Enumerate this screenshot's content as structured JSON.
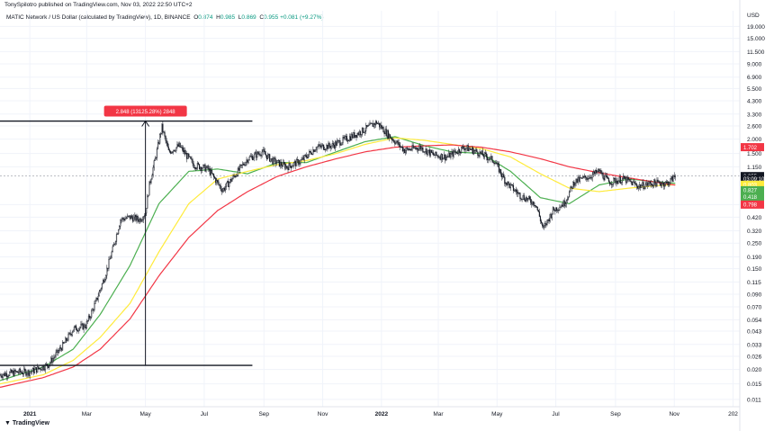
{
  "header": {
    "attribution": "TonySpilotro published on TradingView.com, Nov 03, 2022 22:50 UTC+2",
    "symbol_line": "MATIC Network / US Dollar (calculated by TradingView), 1D, BINANCE",
    "o_key": "O",
    "o_val": "0.874",
    "h_key": "H",
    "h_val": "0.985",
    "l_key": "L",
    "l_val": "0.869",
    "c_key": "C",
    "c_val": "0.955 +0.081 (+9.27%)"
  },
  "footer": {
    "brand": "TradingView"
  },
  "chart_data": {
    "type": "line",
    "currency": "USD",
    "scale": "log",
    "x_tick_labels": [
      "2021",
      "Mar",
      "May",
      "Jul",
      "Sep",
      "Nov",
      "2022",
      "Mar",
      "May",
      "Jul",
      "Sep",
      "Nov",
      "202"
    ],
    "y_tick_labels": [
      "19.000",
      "15.000",
      "11.500",
      "9.000",
      "6.900",
      "5.500",
      "4.300",
      "3.300",
      "2.600",
      "2.000",
      "1.500",
      "1.150",
      "0.540",
      "0.420",
      "0.320",
      "0.250",
      "0.190",
      "0.150",
      "0.115",
      "0.090",
      "0.070",
      "0.054",
      "0.043",
      "0.033",
      "0.026",
      "0.020",
      "0.015",
      "0.011"
    ],
    "y_tick_values": [
      19,
      15,
      11.5,
      9,
      6.9,
      5.5,
      4.3,
      3.3,
      2.6,
      2.0,
      1.5,
      1.15,
      0.54,
      0.42,
      0.32,
      0.25,
      0.19,
      0.15,
      0.115,
      0.09,
      0.07,
      0.054,
      0.043,
      0.033,
      0.026,
      0.02,
      0.015,
      0.011
    ],
    "x_tick_dates": [
      "2021-01-01",
      "2021-03-01",
      "2021-05-01",
      "2021-07-01",
      "2021-09-01",
      "2021-11-01",
      "2022-01-01",
      "2022-03-01",
      "2022-05-01",
      "2022-07-01",
      "2022-09-01",
      "2022-11-01",
      "2023-01-01"
    ],
    "price_path": [
      [
        "2020-12-01",
        0.018
      ],
      [
        "2020-12-20",
        0.019
      ],
      [
        "2021-01-01",
        0.019
      ],
      [
        "2021-01-20",
        0.022
      ],
      [
        "2021-02-05",
        0.033
      ],
      [
        "2021-02-15",
        0.045
      ],
      [
        "2021-02-28",
        0.048
      ],
      [
        "2021-03-10",
        0.075
      ],
      [
        "2021-03-20",
        0.13
      ],
      [
        "2021-03-28",
        0.22
      ],
      [
        "2021-04-05",
        0.4
      ],
      [
        "2021-04-15",
        0.42
      ],
      [
        "2021-04-25",
        0.4
      ],
      [
        "2021-05-01",
        0.46
      ],
      [
        "2021-05-05",
        0.8
      ],
      [
        "2021-05-12",
        1.45
      ],
      [
        "2021-05-18",
        2.55
      ],
      [
        "2021-05-25",
        1.55
      ],
      [
        "2021-06-05",
        1.75
      ],
      [
        "2021-06-20",
        1.2
      ],
      [
        "2021-07-05",
        1.1
      ],
      [
        "2021-07-20",
        0.72
      ],
      [
        "2021-08-01",
        0.95
      ],
      [
        "2021-08-15",
        1.35
      ],
      [
        "2021-08-30",
        1.55
      ],
      [
        "2021-09-10",
        1.3
      ],
      [
        "2021-09-25",
        1.15
      ],
      [
        "2021-10-10",
        1.3
      ],
      [
        "2021-10-25",
        1.7
      ],
      [
        "2021-11-10",
        1.75
      ],
      [
        "2021-11-25",
        2.0
      ],
      [
        "2021-12-10",
        2.3
      ],
      [
        "2021-12-27",
        2.8
      ],
      [
        "2022-01-10",
        2.1
      ],
      [
        "2022-01-25",
        1.6
      ],
      [
        "2022-02-10",
        1.7
      ],
      [
        "2022-02-25",
        1.45
      ],
      [
        "2022-03-10",
        1.4
      ],
      [
        "2022-03-28",
        1.7
      ],
      [
        "2022-04-10",
        1.55
      ],
      [
        "2022-04-28",
        1.3
      ],
      [
        "2022-05-10",
        0.85
      ],
      [
        "2022-05-25",
        0.65
      ],
      [
        "2022-06-10",
        0.55
      ],
      [
        "2022-06-18",
        0.33
      ],
      [
        "2022-06-28",
        0.48
      ],
      [
        "2022-07-10",
        0.56
      ],
      [
        "2022-07-20",
        0.85
      ],
      [
        "2022-08-05",
        0.95
      ],
      [
        "2022-08-15",
        1.05
      ],
      [
        "2022-08-25",
        0.85
      ],
      [
        "2022-09-10",
        0.9
      ],
      [
        "2022-09-25",
        0.78
      ],
      [
        "2022-10-10",
        0.83
      ],
      [
        "2022-10-25",
        0.83
      ],
      [
        "2022-11-02",
        0.955
      ]
    ],
    "series": [
      {
        "color": "#4caf50",
        "points": [
          [
            "2020-12-01",
            0.016
          ],
          [
            "2021-01-15",
            0.021
          ],
          [
            "2021-02-15",
            0.03
          ],
          [
            "2021-03-15",
            0.06
          ],
          [
            "2021-04-15",
            0.16
          ],
          [
            "2021-05-15",
            0.55
          ],
          [
            "2021-06-15",
            1.05
          ],
          [
            "2021-07-15",
            1.1
          ],
          [
            "2021-08-15",
            1.0
          ],
          [
            "2021-09-15",
            1.25
          ],
          [
            "2021-10-15",
            1.25
          ],
          [
            "2021-11-15",
            1.55
          ],
          [
            "2021-12-15",
            1.9
          ],
          [
            "2022-01-15",
            2.1
          ],
          [
            "2022-02-15",
            1.75
          ],
          [
            "2022-03-15",
            1.55
          ],
          [
            "2022-04-15",
            1.5
          ],
          [
            "2022-05-15",
            1.05
          ],
          [
            "2022-06-15",
            0.62
          ],
          [
            "2022-07-15",
            0.55
          ],
          [
            "2022-08-15",
            0.8
          ],
          [
            "2022-09-15",
            0.9
          ],
          [
            "2022-10-15",
            0.85
          ],
          [
            "2022-11-02",
            0.827
          ]
        ]
      },
      {
        "color": "#ffeb3b",
        "points": [
          [
            "2020-12-01",
            0.015
          ],
          [
            "2021-01-15",
            0.018
          ],
          [
            "2021-02-15",
            0.024
          ],
          [
            "2021-03-15",
            0.038
          ],
          [
            "2021-04-15",
            0.075
          ],
          [
            "2021-05-15",
            0.21
          ],
          [
            "2021-06-15",
            0.55
          ],
          [
            "2021-07-15",
            0.9
          ],
          [
            "2021-08-15",
            1.05
          ],
          [
            "2021-09-15",
            1.2
          ],
          [
            "2021-10-15",
            1.3
          ],
          [
            "2021-11-15",
            1.5
          ],
          [
            "2021-12-15",
            1.8
          ],
          [
            "2022-01-15",
            2.05
          ],
          [
            "2022-02-15",
            1.95
          ],
          [
            "2022-03-15",
            1.8
          ],
          [
            "2022-04-15",
            1.65
          ],
          [
            "2022-05-15",
            1.4
          ],
          [
            "2022-06-15",
            1.0
          ],
          [
            "2022-07-15",
            0.75
          ],
          [
            "2022-08-15",
            0.7
          ],
          [
            "2022-09-15",
            0.75
          ],
          [
            "2022-10-15",
            0.79
          ],
          [
            "2022-11-02",
            0.803
          ]
        ]
      },
      {
        "color": "#f23645",
        "points": [
          [
            "2020-12-01",
            0.014
          ],
          [
            "2021-01-15",
            0.017
          ],
          [
            "2021-02-15",
            0.021
          ],
          [
            "2021-03-15",
            0.03
          ],
          [
            "2021-04-15",
            0.055
          ],
          [
            "2021-05-15",
            0.13
          ],
          [
            "2021-06-15",
            0.28
          ],
          [
            "2021-07-15",
            0.48
          ],
          [
            "2021-08-15",
            0.7
          ],
          [
            "2021-09-15",
            0.95
          ],
          [
            "2021-10-15",
            1.15
          ],
          [
            "2021-11-15",
            1.35
          ],
          [
            "2021-12-15",
            1.55
          ],
          [
            "2022-01-15",
            1.7
          ],
          [
            "2022-02-15",
            1.75
          ],
          [
            "2022-03-15",
            1.78
          ],
          [
            "2022-04-15",
            1.7
          ],
          [
            "2022-05-15",
            1.55
          ],
          [
            "2022-06-15",
            1.35
          ],
          [
            "2022-07-15",
            1.15
          ],
          [
            "2022-08-15",
            1.02
          ],
          [
            "2022-09-15",
            0.92
          ],
          [
            "2022-10-15",
            0.84
          ],
          [
            "2022-11-02",
            0.798
          ]
        ]
      }
    ],
    "measurement": {
      "label": "2.848 (13125.28%) 2848",
      "from_date": "2021-05-01",
      "to_date": "2021-05-01",
      "low_price": 0.0217,
      "high_price": 2.87,
      "line_start": "2020-12-01",
      "line_end": "2021-08-20"
    },
    "current_price_line": 0.955,
    "price_badges": [
      {
        "text": "1.702",
        "price": 1.702,
        "color": "#f23645"
      },
      {
        "text": "0.955",
        "price": 0.955,
        "color": "#131722"
      },
      {
        "text": "03:09:10",
        "price": 0.9,
        "color": "#131722"
      },
      {
        "text": "0.803",
        "price": 0.803,
        "color": "#ffeb3b",
        "text_color": "#131722"
      },
      {
        "text": "0.827",
        "price": 0.72,
        "color": "#4caf50"
      },
      {
        "text": "0.418",
        "price": 0.63,
        "color": "#4caf50"
      },
      {
        "text": "0.798",
        "price": 0.54,
        "color": "#f23645"
      }
    ]
  }
}
